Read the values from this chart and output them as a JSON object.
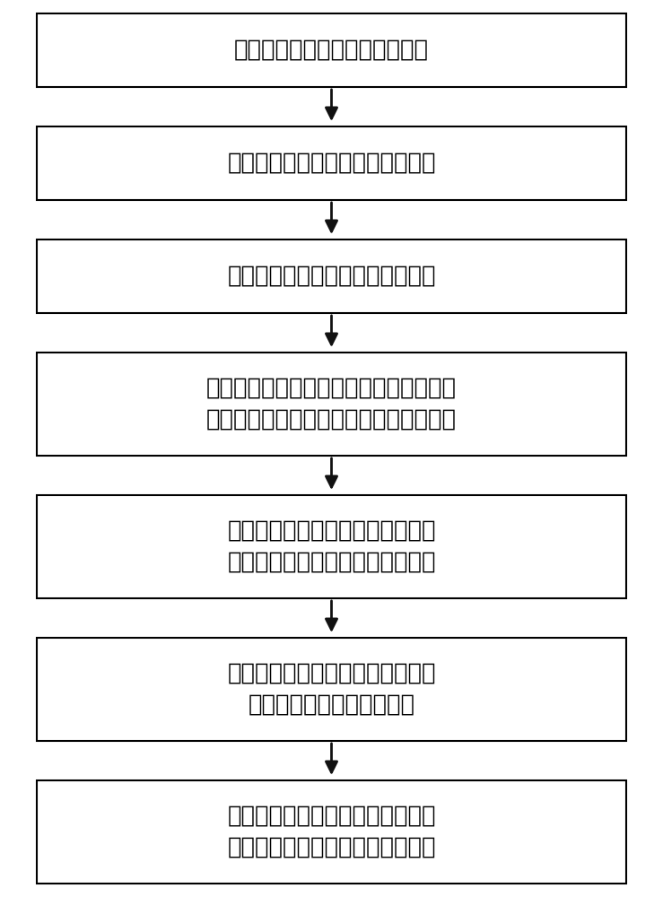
{
  "boxes": [
    {
      "lines": [
        "获取某一区域的烃源岩岩心样品"
      ],
      "n_lines": 1
    },
    {
      "lines": [
        "实验测量烃源岩岩心铀元素含量值"
      ],
      "n_lines": 1
    },
    {
      "lines": [
        "实验测量烃源岩岩心有机碳含量值"
      ],
      "n_lines": 1
    },
    {
      "lines": [
        "获取各岩心深度处测井信息中自然伽马、",
        "能谱伽马、电阻率、声波时差以及密度值"
      ],
      "n_lines": 2
    },
    {
      "lines": [
        "建立铀含量与自然伽马或自然伽马",
        "能谱曲线的对应关系并拟合成函数"
      ],
      "n_lines": 2
    },
    {
      "lines": [
        "建立有机碳含量值和相关测井曲线",
        "值的对应关系并拟合成函数"
      ],
      "n_lines": 2
    },
    {
      "lines": [
        "根据拟合函数确定井中各深度位置",
        "烃源岩的铀元素含量和有机碳含量"
      ],
      "n_lines": 2
    }
  ],
  "box_color": "#ffffff",
  "box_edge_color": "#000000",
  "arrow_color": "#111111",
  "text_color": "#000000",
  "bg_color": "#ffffff",
  "font_size": 18.5,
  "fig_width": 7.39,
  "fig_height": 10.0
}
